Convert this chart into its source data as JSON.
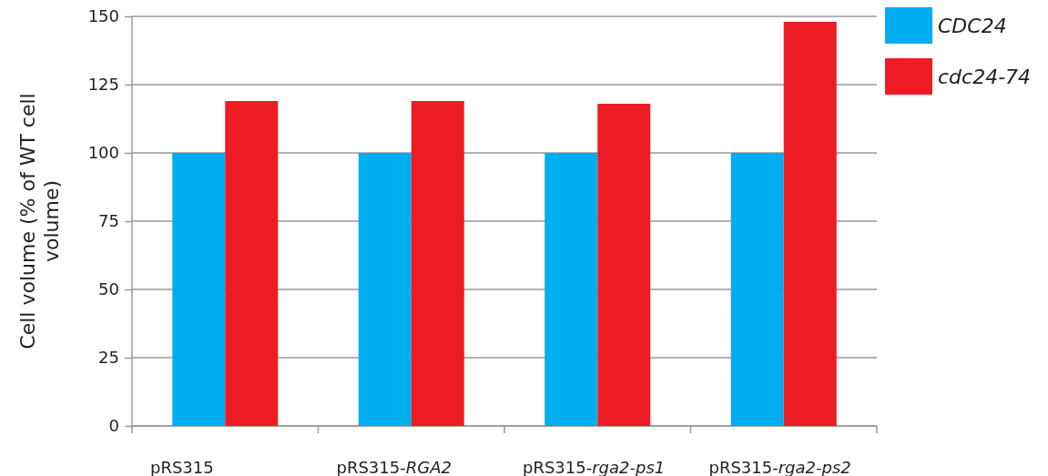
{
  "chart_data": {
    "type": "bar",
    "ylabel": "Cell volume (% of WT cell volume)",
    "categories": [
      "pRS315",
      "pRS315-RGA2",
      "pRS315-rga2-ps1",
      "pRS315-rga2-ps2"
    ],
    "series": [
      {
        "name": "CDC24",
        "color": "#00aeef",
        "values": [
          100,
          100,
          100,
          100
        ]
      },
      {
        "name": "cdc24-74",
        "color": "#ed1c24",
        "values": [
          119,
          119,
          118,
          148
        ]
      }
    ],
    "ylim": [
      0,
      150
    ],
    "yticks": [
      0,
      25,
      50,
      75,
      100,
      125,
      150
    ],
    "grid": "y",
    "legend": "top right"
  }
}
